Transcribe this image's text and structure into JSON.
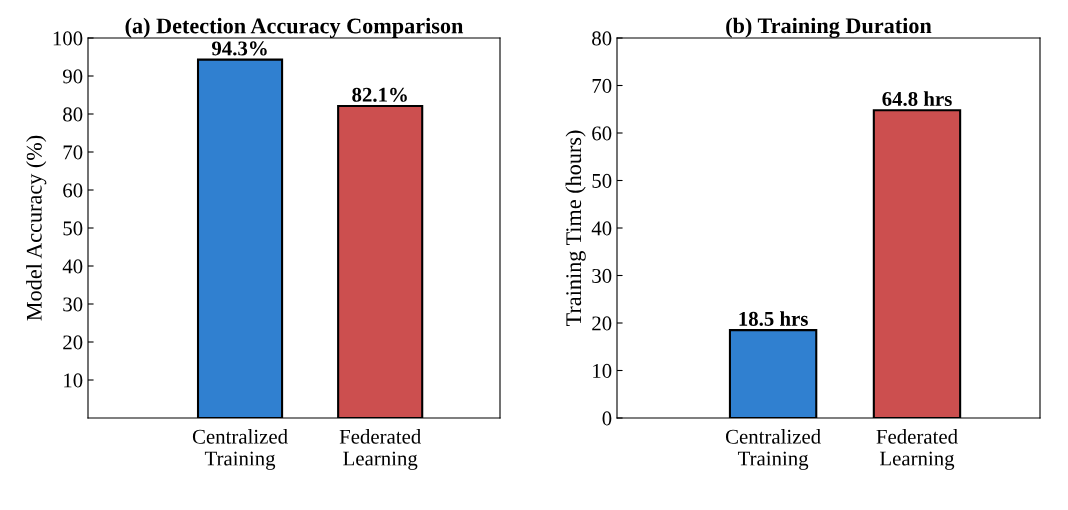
{
  "chart_data": [
    {
      "type": "bar",
      "title": "(a) Detection Accuracy Comparison",
      "ylabel": "Model Accuracy (%)",
      "categories": [
        "Centralized\nTraining",
        "Federated\nLearning"
      ],
      "values": [
        94.3,
        82.1
      ],
      "colors": [
        "#3080d0",
        "#cc4f4f"
      ],
      "value_labels": [
        "94.3%",
        "82.1%"
      ],
      "ylim": [
        0,
        100
      ],
      "yticks": [
        10,
        20,
        30,
        40,
        50,
        60,
        70,
        80,
        90,
        100
      ],
      "grid": false
    },
    {
      "type": "bar",
      "title": "(b) Training Duration",
      "ylabel": "Training Time (hours)",
      "categories": [
        "Centralized\nTraining",
        "Federated\nLearning"
      ],
      "values": [
        18.5,
        64.8
      ],
      "colors": [
        "#3080d0",
        "#cc4f4f"
      ],
      "value_labels": [
        "18.5 hrs",
        "64.8 hrs"
      ],
      "ylim": [
        0,
        80
      ],
      "yticks": [
        0,
        10,
        20,
        30,
        40,
        50,
        60,
        70,
        80
      ],
      "grid": false
    }
  ]
}
